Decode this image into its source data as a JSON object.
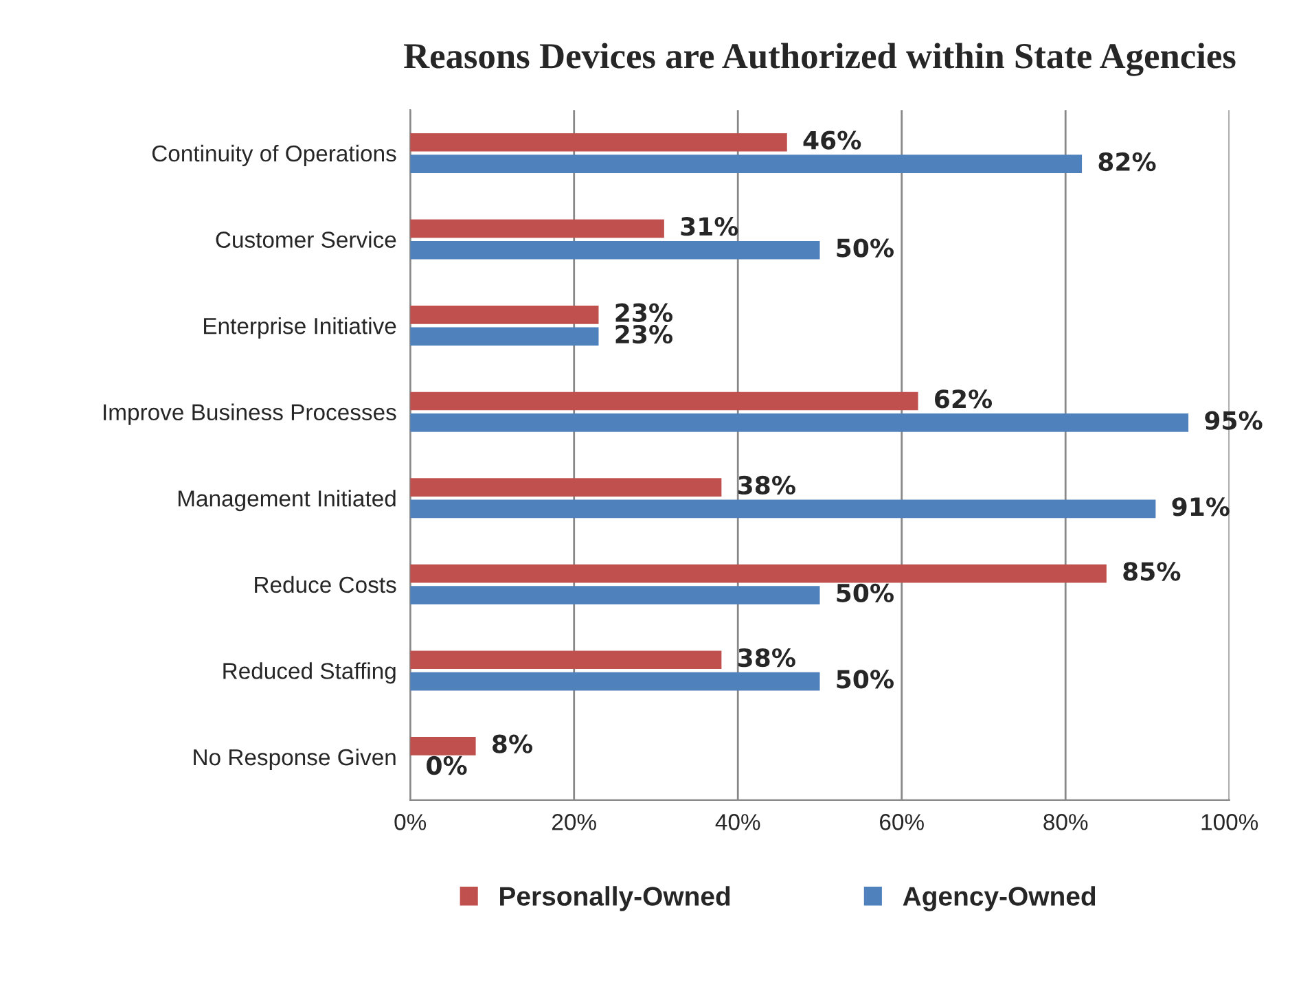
{
  "chart_data": {
    "type": "bar",
    "orientation": "horizontal",
    "title": "Reasons Devices are Authorized within State Agencies",
    "categories": [
      "Continuity of Operations",
      "Customer Service",
      "Enterprise Initiative",
      "Improve Business Processes",
      "Management Initiated",
      "Reduce Costs",
      "Reduced Staffing",
      "No Response Given"
    ],
    "series": [
      {
        "name": "Personally-Owned",
        "color": "#c0504d",
        "values": [
          46,
          31,
          23,
          62,
          38,
          85,
          38,
          8
        ],
        "value_labels": [
          "46%",
          "31%",
          "23%",
          "62%",
          "38%",
          "85%",
          "38%",
          "8%"
        ]
      },
      {
        "name": "Agency-Owned",
        "color": "#4f81bd",
        "values": [
          82,
          50,
          23,
          95,
          91,
          50,
          50,
          0
        ],
        "value_labels": [
          "82%",
          "50%",
          "23%",
          "95%",
          "91%",
          "50%",
          "50%",
          "0%"
        ]
      }
    ],
    "xlim": [
      0,
      100
    ],
    "xticks": [
      {
        "value": 0,
        "label": "0%"
      },
      {
        "value": 20,
        "label": "20%"
      },
      {
        "value": 40,
        "label": "40%"
      },
      {
        "value": 60,
        "label": "60%"
      },
      {
        "value": 80,
        "label": "80%"
      },
      {
        "value": 100,
        "label": "100%"
      }
    ],
    "grid": "x",
    "legend": "bottom"
  }
}
